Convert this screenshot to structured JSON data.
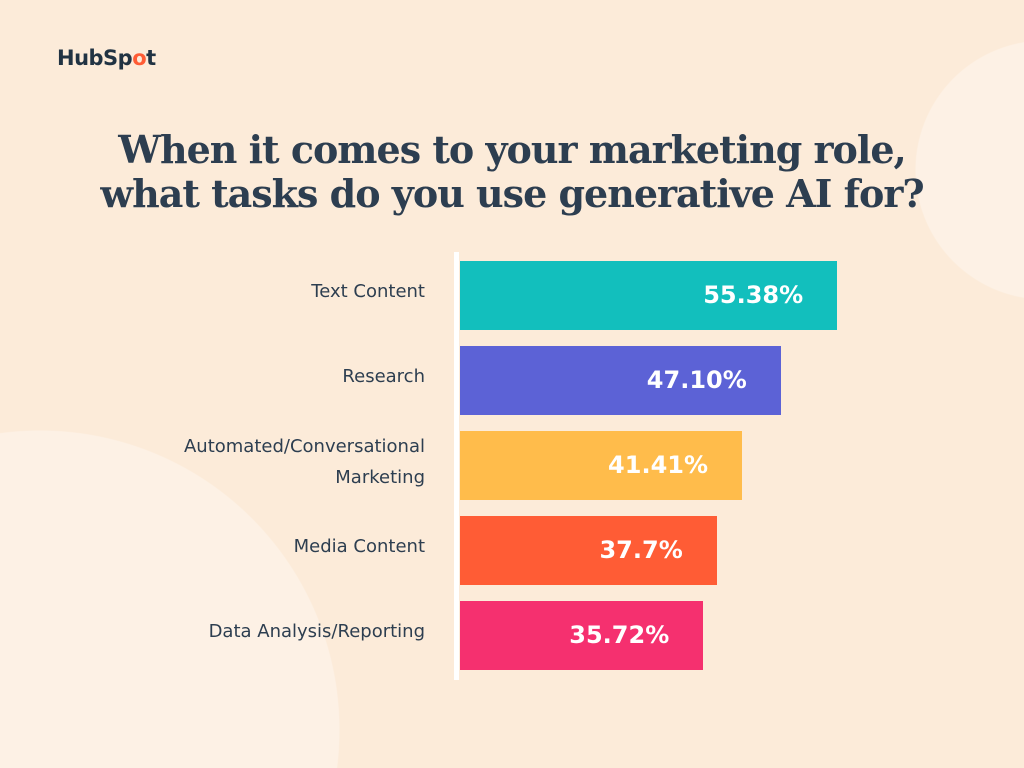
{
  "logo": {
    "text_before": "HubSp",
    "text_o": "o",
    "text_after": "t"
  },
  "title_line1": "When it comes to your marketing role,",
  "title_line2": "what tasks do you use generative AI for?",
  "chart_data": {
    "type": "bar",
    "orientation": "horizontal",
    "title": "When it comes to your marketing role, what tasks do you use generative AI for?",
    "categories": [
      "Text Content",
      "Research",
      "Automated/Conversational Marketing",
      "Media Content",
      "Data Analysis/Reporting"
    ],
    "values": [
      55.38,
      47.1,
      41.41,
      37.7,
      35.72
    ],
    "value_labels": [
      "55.38%",
      "47.10%",
      "41.41%",
      "37.7%",
      "35.72%"
    ],
    "colors": [
      "#12bfbd",
      "#5c62d6",
      "#ffbc4b",
      "#ff5c35",
      "#f5306f"
    ],
    "xlim": [
      0,
      58
    ],
    "grid": false,
    "legend": "none"
  }
}
